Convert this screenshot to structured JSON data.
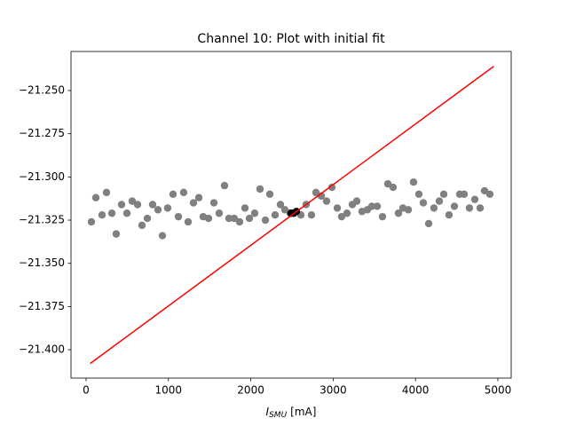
{
  "chart_data": {
    "type": "scatter",
    "title": "Channel 10: Plot with initial fit",
    "x_label": {
      "symbol": "I",
      "subscript": "SMU",
      "unit": "[mA]"
    },
    "xlim": [
      -183,
      5162
    ],
    "ylim": [
      -21.4164,
      -21.2274
    ],
    "xticks": [
      0,
      1000,
      2000,
      3000,
      4000,
      5000
    ],
    "yticks": [
      {
        "value": -21.25,
        "label": "−21.250"
      },
      {
        "value": -21.275,
        "label": "−21.275"
      },
      {
        "value": -21.3,
        "label": "−21.300"
      },
      {
        "value": -21.325,
        "label": "−21.325"
      },
      {
        "value": -21.35,
        "label": "−21.350"
      },
      {
        "value": -21.375,
        "label": "−21.375"
      },
      {
        "value": -21.4,
        "label": "−21.400"
      }
    ],
    "series": [
      {
        "type": "scatter",
        "color": "#808080",
        "x": [
          65,
          119,
          194,
          248,
          313,
          366,
          431,
          496,
          560,
          625,
          679,
          744,
          808,
          873,
          927,
          991,
          1056,
          1121,
          1185,
          1239,
          1304,
          1369,
          1422,
          1487,
          1552,
          1616,
          1681,
          1735,
          1799,
          1864,
          1929,
          1983,
          2047,
          2112,
          2177,
          2231,
          2295,
          2360,
          2414,
          2479,
          2608,
          2672,
          2737,
          2791,
          2856,
          2920,
          2985,
          3050,
          3103,
          3168,
          3233,
          3287,
          3351,
          3416,
          3470,
          3535,
          3599,
          3664,
          3728,
          3793,
          3847,
          3912,
          3976,
          4041,
          4095,
          4160,
          4224,
          4289,
          4343,
          4407,
          4472,
          4537,
          4591,
          4655,
          4720,
          4785,
          4838,
          4903
        ],
        "y": [
          -21.326,
          -21.312,
          -21.322,
          -21.309,
          -21.321,
          -21.333,
          -21.316,
          -21.321,
          -21.314,
          -21.316,
          -21.328,
          -21.324,
          -21.316,
          -21.319,
          -21.334,
          -21.318,
          -21.31,
          -21.323,
          -21.309,
          -21.326,
          -21.315,
          -21.312,
          -21.323,
          -21.324,
          -21.315,
          -21.321,
          -21.305,
          -21.324,
          -21.324,
          -21.326,
          -21.318,
          -21.324,
          -21.321,
          -21.307,
          -21.325,
          -21.31,
          -21.322,
          -21.316,
          -21.319,
          -21.321,
          -21.322,
          -21.316,
          -21.322,
          -21.309,
          -21.311,
          -21.314,
          -21.306,
          -21.318,
          -21.323,
          -21.321,
          -21.316,
          -21.314,
          -21.32,
          -21.319,
          -21.317,
          -21.317,
          -21.323,
          -21.304,
          -21.306,
          -21.321,
          -21.318,
          -21.319,
          -21.303,
          -21.31,
          -21.315,
          -21.327,
          -21.318,
          -21.314,
          -21.31,
          -21.322,
          -21.317,
          -21.31,
          -21.31,
          -21.318,
          -21.313,
          -21.318,
          -21.308,
          -21.31
        ]
      },
      {
        "type": "scatter",
        "color": "#000000",
        "x": [
          2489,
          2522,
          2554
        ],
        "y": [
          -21.321,
          -21.321,
          -21.32
        ]
      },
      {
        "type": "line",
        "color": "#ff0000",
        "x": [
          50,
          4950
        ],
        "y": [
          -21.408,
          -21.236
        ]
      }
    ]
  }
}
